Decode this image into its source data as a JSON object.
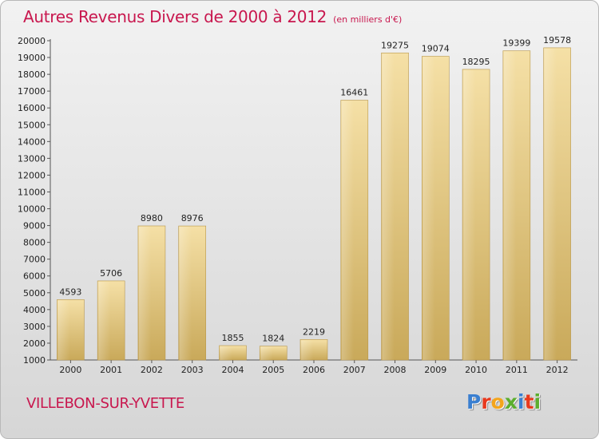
{
  "chart_data": {
    "type": "bar",
    "title": "Autres Revenus Divers de 2000 à 2012",
    "subtitle": "(en milliers d'€)",
    "categories": [
      "2000",
      "2001",
      "2002",
      "2003",
      "2004",
      "2005",
      "2006",
      "2007",
      "2008",
      "2009",
      "2010",
      "2011",
      "2012"
    ],
    "values": [
      4593,
      5706,
      8980,
      8976,
      1855,
      1824,
      2219,
      16461,
      19275,
      19074,
      18295,
      19399,
      19578
    ],
    "data_labels": [
      "4593",
      "5706",
      "8980",
      "8976",
      "1855",
      "1824",
      "2219",
      "16461",
      "19275",
      "19074",
      "18295",
      "19399",
      "19578"
    ],
    "ylim": [
      1000,
      20000
    ],
    "yticks": [
      "1000",
      "2000",
      "3000",
      "4000",
      "5000",
      "6000",
      "7000",
      "8000",
      "9000",
      "10000",
      "11000",
      "12000",
      "13000",
      "14000",
      "15000",
      "16000",
      "17000",
      "18000",
      "19000",
      "20000"
    ],
    "grid": false,
    "bar_color": "#e8c97a",
    "xlabel": "",
    "ylabel": ""
  },
  "footer": {
    "commune": "VILLEBON-SUR-YVETTE",
    "brand_letters": [
      {
        "char": "P",
        "color": "#3a7fd0"
      },
      {
        "char": "r",
        "color": "#e8391d"
      },
      {
        "char": "o",
        "color": "#f4a51c"
      },
      {
        "char": "x",
        "color": "#5cae2e"
      },
      {
        "char": "i",
        "color": "#3a7fd0"
      },
      {
        "char": "t",
        "color": "#e8391d"
      },
      {
        "char": "i",
        "color": "#5cae2e"
      }
    ]
  }
}
